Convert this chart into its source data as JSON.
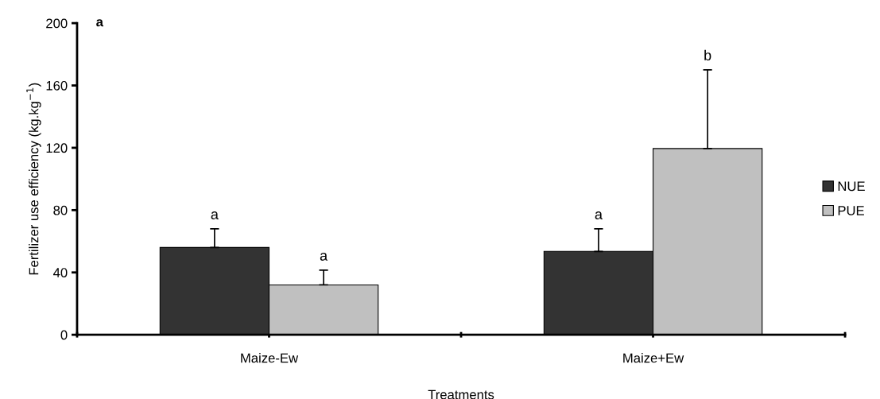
{
  "chart_data": {
    "type": "bar",
    "xlabel": "Treatments",
    "ylabel": "Fertilizer use efficiency (kg.kg$^{−1}$)",
    "annotations": [
      "a",
      "a",
      "a",
      "a",
      "b"
    ],
    "categories": [
      "Maize-Ew",
      "Maize+Ew"
    ],
    "series": [
      {
        "name": "NUE",
        "color": "#333333",
        "values": [
          56,
          53.5
        ],
        "errors": [
          [
            56,
            68
          ],
          [
            53.5,
            68
          ]
        ]
      },
      {
        "name": "PUE",
        "color": "#c0c0c0",
        "values": [
          32,
          119.5
        ],
        "errors": [
          [
            32,
            41.5
          ],
          [
            119.5,
            170
          ]
        ]
      }
    ],
    "ylim": [
      0,
      200
    ],
    "yticks": [
      0,
      40,
      80,
      120,
      160,
      200
    ],
    "grid": false,
    "legend": "right"
  }
}
